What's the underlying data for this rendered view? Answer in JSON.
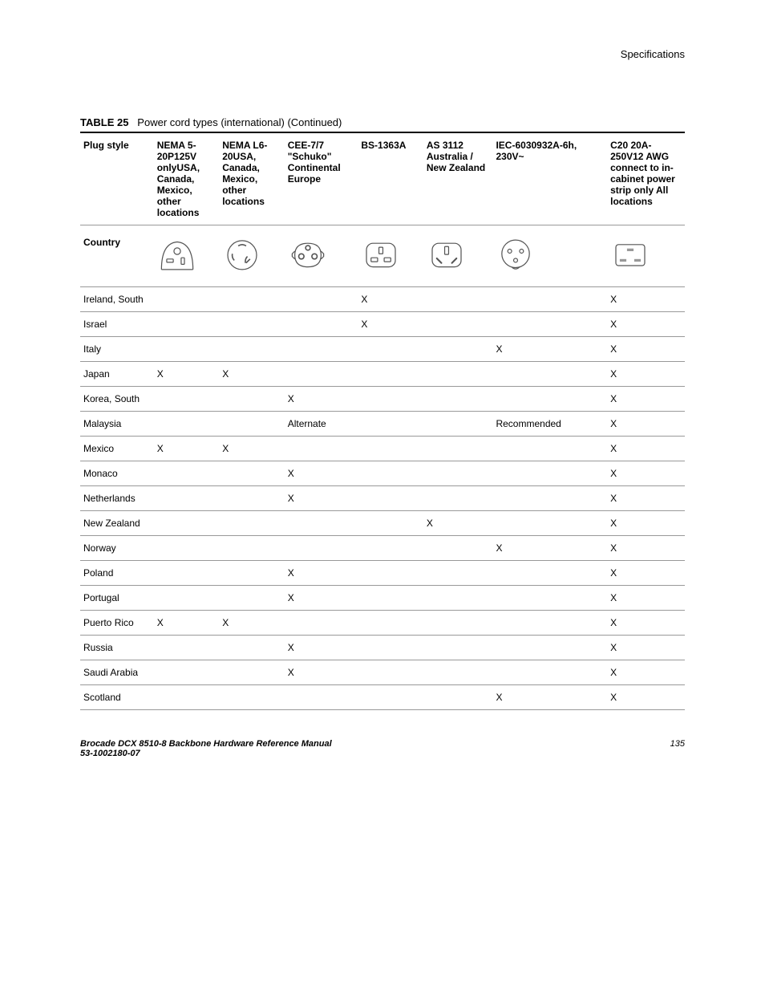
{
  "header": {
    "title": "Specifications"
  },
  "caption": {
    "label": "TABLE 25",
    "text": "Power cord types (international) (Continued)"
  },
  "columns": {
    "plug_style": "Plug style",
    "nema1": "NEMA 5-20P125V onlyUSA, Canada, Mexico, other locations",
    "nema2": "NEMA L6-20USA, Canada, Mexico, other locations",
    "cee": "CEE-7/7 \"Schuko\" Continental Europe",
    "bs": "BS-1363A",
    "as": "AS 3112 Australia / New Zealand",
    "iec": "IEC-6030932A-6h, 230V~",
    "c20": "C20 20A-250V12 AWG connect to in-cabinet power strip only All locations",
    "country": "Country"
  },
  "rows": [
    {
      "country": "Ireland, South",
      "nema1": "",
      "nema2": "",
      "cee": "",
      "bs": "X",
      "as": "",
      "iec": "",
      "c20": "X"
    },
    {
      "country": "Israel",
      "nema1": "",
      "nema2": "",
      "cee": "",
      "bs": "X",
      "as": "",
      "iec": "",
      "c20": "X"
    },
    {
      "country": "Italy",
      "nema1": "",
      "nema2": "",
      "cee": "",
      "bs": "",
      "as": "",
      "iec": "X",
      "c20": "X"
    },
    {
      "country": "Japan",
      "nema1": "X",
      "nema2": "X",
      "cee": "",
      "bs": "",
      "as": "",
      "iec": "",
      "c20": "X"
    },
    {
      "country": "Korea, South",
      "nema1": "",
      "nema2": "",
      "cee": "X",
      "bs": "",
      "as": "",
      "iec": "",
      "c20": "X"
    },
    {
      "country": "Malaysia",
      "nema1": "",
      "nema2": "",
      "cee": "Alternate",
      "bs": "",
      "as": "",
      "iec": "Recommended",
      "c20": "X"
    },
    {
      "country": "Mexico",
      "nema1": "X",
      "nema2": "X",
      "cee": "",
      "bs": "",
      "as": "",
      "iec": "",
      "c20": "X"
    },
    {
      "country": "Monaco",
      "nema1": "",
      "nema2": "",
      "cee": "X",
      "bs": "",
      "as": "",
      "iec": "",
      "c20": "X"
    },
    {
      "country": "Netherlands",
      "nema1": "",
      "nema2": "",
      "cee": "X",
      "bs": "",
      "as": "",
      "iec": "",
      "c20": "X"
    },
    {
      "country": "New Zealand",
      "nema1": "",
      "nema2": "",
      "cee": "",
      "bs": "",
      "as": "X",
      "iec": "",
      "c20": "X"
    },
    {
      "country": "Norway",
      "nema1": "",
      "nema2": "",
      "cee": "",
      "bs": "",
      "as": "",
      "iec": "X",
      "c20": "X"
    },
    {
      "country": "Poland",
      "nema1": "",
      "nema2": "",
      "cee": "X",
      "bs": "",
      "as": "",
      "iec": "",
      "c20": "X"
    },
    {
      "country": "Portugal",
      "nema1": "",
      "nema2": "",
      "cee": "X",
      "bs": "",
      "as": "",
      "iec": "",
      "c20": "X"
    },
    {
      "country": "Puerto Rico",
      "nema1": "X",
      "nema2": "X",
      "cee": "",
      "bs": "",
      "as": "",
      "iec": "",
      "c20": "X"
    },
    {
      "country": "Russia",
      "nema1": "",
      "nema2": "",
      "cee": "X",
      "bs": "",
      "as": "",
      "iec": "",
      "c20": "X"
    },
    {
      "country": "Saudi Arabia",
      "nema1": "",
      "nema2": "",
      "cee": "X",
      "bs": "",
      "as": "",
      "iec": "",
      "c20": "X"
    },
    {
      "country": "Scotland",
      "nema1": "",
      "nema2": "",
      "cee": "",
      "bs": "",
      "as": "",
      "iec": "X",
      "c20": "X"
    }
  ],
  "footer": {
    "manual": "Brocade DCX 8510-8 Backbone Hardware Reference Manual",
    "docnum": "53-1002180-07",
    "page": "135"
  },
  "colors": {
    "text": "#000000",
    "border_dark": "#000000",
    "border_light": "#999999",
    "icon_stroke": "#555555",
    "background": "#ffffff"
  }
}
